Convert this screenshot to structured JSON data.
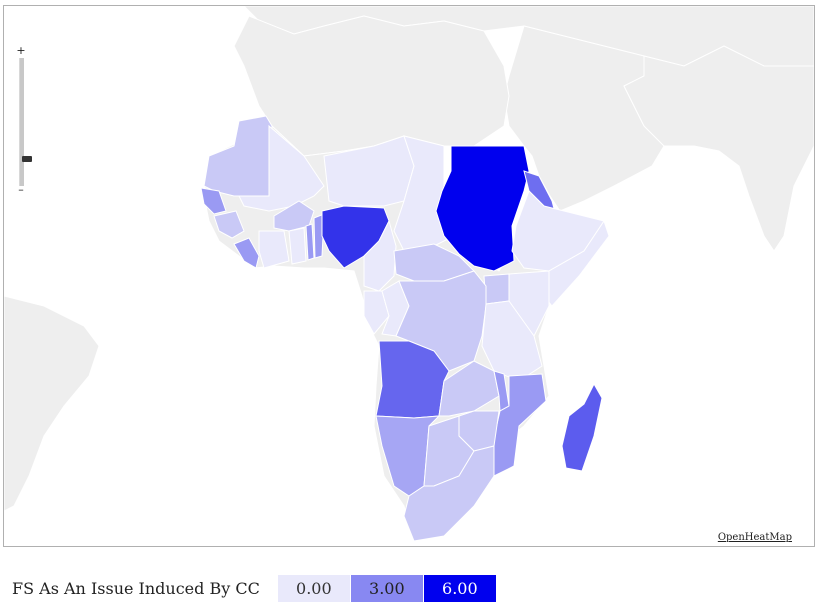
{
  "map": {
    "credit": "OpenHeatMap",
    "zoom": {
      "in_label": "+",
      "out_label": "–",
      "level": 0.2
    },
    "base_colors": {
      "sea": "#ffffff",
      "land": "#eeeeee",
      "border": "#ffffff"
    },
    "scale_colors": [
      "#e9e9fb",
      "#8888f2",
      "#0000ee"
    ],
    "regions": [
      {
        "name": "Sudan",
        "value": 6
      },
      {
        "name": "Nigeria",
        "value": 5
      },
      {
        "name": "Angola",
        "value": 4
      },
      {
        "name": "Madagascar",
        "value": 4
      },
      {
        "name": "Eritrea",
        "value": 3
      },
      {
        "name": "Mozambique",
        "value": 2
      },
      {
        "name": "Namibia",
        "value": 2
      },
      {
        "name": "Senegal",
        "value": 2
      },
      {
        "name": "Benin",
        "value": 2
      },
      {
        "name": "Sierra Leone",
        "value": 2
      },
      {
        "name": "Malawi",
        "value": 2
      },
      {
        "name": "Burkina Faso",
        "value": 1
      },
      {
        "name": "Mauritania",
        "value": 1
      },
      {
        "name": "Niger",
        "value": 0
      },
      {
        "name": "Mali",
        "value": 0
      },
      {
        "name": "Chad",
        "value": 0
      },
      {
        "name": "DR Congo",
        "value": 1
      },
      {
        "name": "Central African Republic",
        "value": 1
      },
      {
        "name": "Zambia",
        "value": 1
      },
      {
        "name": "Tanzania",
        "value": 0
      },
      {
        "name": "Kenya",
        "value": 0
      },
      {
        "name": "Ethiopia",
        "value": 0
      },
      {
        "name": "Uganda",
        "value": 1
      },
      {
        "name": "Cameroon",
        "value": 0
      },
      {
        "name": "Botswana",
        "value": 1
      },
      {
        "name": "Zimbabwe",
        "value": 1
      },
      {
        "name": "South Africa",
        "value": 1
      },
      {
        "name": "Ghana",
        "value": 0
      },
      {
        "name": "Cote d'Ivoire",
        "value": 0
      },
      {
        "name": "Gabon",
        "value": 0
      },
      {
        "name": "Congo",
        "value": 0
      },
      {
        "name": "Guinea",
        "value": 1
      },
      {
        "name": "Togo",
        "value": 2
      },
      {
        "name": "Somalia",
        "value": 0
      }
    ]
  },
  "legend": {
    "title": "FS As An Issue Induced By CC",
    "items": [
      {
        "label": "0.00",
        "color": "#e9e9fb",
        "text_color": "#333333"
      },
      {
        "label": "3.00",
        "color": "#8888f2",
        "text_color": "#222222"
      },
      {
        "label": "6.00",
        "color": "#0000ee",
        "text_color": "#ffffff"
      }
    ]
  }
}
